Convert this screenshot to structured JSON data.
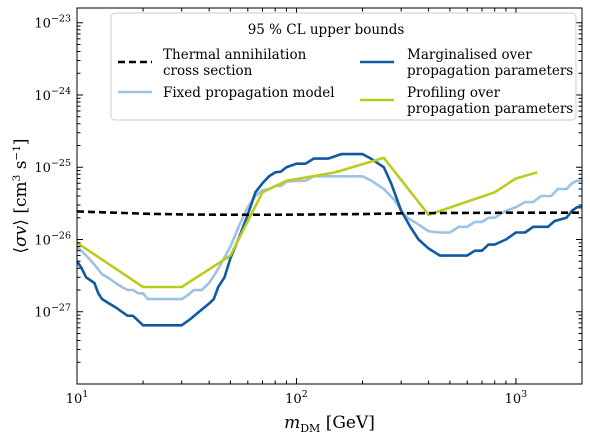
{
  "chart_data": {
    "type": "line",
    "xscale": "log",
    "yscale": "log",
    "xlim": [
      10,
      2000
    ],
    "ylim": [
      1e-28,
      1.6e-23
    ],
    "xlabel": "m_DM [GeV]",
    "ylabel": "⟨σv⟩ [cm³ s⁻¹]",
    "x_ticks": [
      {
        "value": 10,
        "base": "10",
        "exp": "1"
      },
      {
        "value": 100,
        "base": "10",
        "exp": "2"
      },
      {
        "value": 1000,
        "base": "10",
        "exp": "3"
      }
    ],
    "y_ticks": [
      {
        "value": 1e-27,
        "base": "10",
        "exp": "−27"
      },
      {
        "value": 1e-26,
        "base": "10",
        "exp": "−26"
      },
      {
        "value": 1e-25,
        "base": "10",
        "exp": "−25"
      },
      {
        "value": 1e-24,
        "base": "10",
        "exp": "−24"
      },
      {
        "value": 1e-23,
        "base": "10",
        "exp": "−23"
      }
    ],
    "legend": {
      "title": "95 % CL upper bounds",
      "placement": "top"
    },
    "series": [
      {
        "name": [
          "Thermal annihilation",
          "cross section"
        ],
        "color": "#000000",
        "style": "dashed",
        "points": [
          [
            10,
            2.45e-26
          ],
          [
            12,
            2.4e-26
          ],
          [
            15,
            2.35e-26
          ],
          [
            20,
            2.28e-26
          ],
          [
            30,
            2.22e-26
          ],
          [
            50,
            2.2e-26
          ],
          [
            80,
            2.2e-26
          ],
          [
            120,
            2.22e-26
          ],
          [
            200,
            2.25e-26
          ],
          [
            300,
            2.3e-26
          ],
          [
            500,
            2.33e-26
          ],
          [
            1000,
            2.35e-26
          ],
          [
            2000,
            2.35e-26
          ]
        ]
      },
      {
        "name": [
          "Fixed propagation model"
        ],
        "color": "#9ec1e6",
        "style": "solid",
        "points": [
          [
            10,
            8e-27
          ],
          [
            11,
            6e-27
          ],
          [
            12,
            4.5e-27
          ],
          [
            13,
            3.3e-27
          ],
          [
            14,
            2.9e-27
          ],
          [
            15,
            2.5e-27
          ],
          [
            16,
            2.2e-27
          ],
          [
            17,
            2e-27
          ],
          [
            18,
            2e-27
          ],
          [
            19,
            1.8e-27
          ],
          [
            20,
            1.8e-27
          ],
          [
            21,
            1.5e-27
          ],
          [
            25,
            1.5e-27
          ],
          [
            30,
            1.5e-27
          ],
          [
            32,
            1.7e-27
          ],
          [
            34,
            2e-27
          ],
          [
            37,
            2e-27
          ],
          [
            40,
            2.5e-27
          ],
          [
            43,
            3.5e-27
          ],
          [
            46,
            5e-27
          ],
          [
            50,
            8e-27
          ],
          [
            55,
            1.6e-26
          ],
          [
            60,
            2.8e-26
          ],
          [
            65,
            4e-26
          ],
          [
            70,
            4.8e-26
          ],
          [
            75,
            5e-26
          ],
          [
            80,
            5.5e-26
          ],
          [
            85,
            5.5e-26
          ],
          [
            90,
            6.3e-26
          ],
          [
            100,
            6.5e-26
          ],
          [
            110,
            6.5e-26
          ],
          [
            120,
            7.5e-26
          ],
          [
            150,
            7.5e-26
          ],
          [
            200,
            7.5e-26
          ],
          [
            220,
            6.5e-26
          ],
          [
            250,
            5e-26
          ],
          [
            280,
            3.5e-26
          ],
          [
            300,
            2.5e-26
          ],
          [
            320,
            2e-26
          ],
          [
            350,
            1.7e-26
          ],
          [
            400,
            1.3e-26
          ],
          [
            450,
            1.25e-26
          ],
          [
            500,
            1.25e-26
          ],
          [
            550,
            1.5e-26
          ],
          [
            600,
            1.5e-26
          ],
          [
            650,
            1.75e-26
          ],
          [
            700,
            1.75e-26
          ],
          [
            750,
            2e-26
          ],
          [
            800,
            2e-26
          ],
          [
            900,
            2.5e-26
          ],
          [
            1000,
            2.8e-26
          ],
          [
            1100,
            3.3e-26
          ],
          [
            1200,
            3.3e-26
          ],
          [
            1300,
            4e-26
          ],
          [
            1450,
            4e-26
          ],
          [
            1550,
            5e-26
          ],
          [
            1700,
            5e-26
          ],
          [
            1800,
            6e-26
          ],
          [
            1900,
            6.5e-26
          ],
          [
            2000,
            6.5e-26
          ]
        ]
      },
      {
        "name": [
          "Marginalised over",
          "propagation parameters"
        ],
        "color": "#0f5aa3",
        "style": "solid",
        "points": [
          [
            10,
            5e-27
          ],
          [
            10.5,
            4e-27
          ],
          [
            11,
            3e-27
          ],
          [
            12,
            2.5e-27
          ],
          [
            12.5,
            1.8e-27
          ],
          [
            13,
            1.5e-27
          ],
          [
            14,
            1.3e-27
          ],
          [
            15,
            1.15e-27
          ],
          [
            16,
            1e-27
          ],
          [
            17,
            8.8e-28
          ],
          [
            18,
            8.8e-28
          ],
          [
            20,
            6.5e-28
          ],
          [
            25,
            6.5e-28
          ],
          [
            30,
            6.5e-28
          ],
          [
            33,
            8e-28
          ],
          [
            36,
            1e-27
          ],
          [
            40,
            1.3e-27
          ],
          [
            42,
            1.5e-27
          ],
          [
            44,
            2.2e-27
          ],
          [
            47,
            3e-27
          ],
          [
            50,
            5.5e-27
          ],
          [
            55,
            1.1e-26
          ],
          [
            60,
            2.2e-26
          ],
          [
            65,
            4.5e-26
          ],
          [
            70,
            6e-26
          ],
          [
            75,
            7.5e-26
          ],
          [
            80,
            8.5e-26
          ],
          [
            85,
            8.7e-26
          ],
          [
            90,
            1e-25
          ],
          [
            100,
            1.12e-25
          ],
          [
            110,
            1.12e-25
          ],
          [
            120,
            1.32e-25
          ],
          [
            140,
            1.32e-25
          ],
          [
            160,
            1.52e-25
          ],
          [
            200,
            1.52e-25
          ],
          [
            220,
            1.3e-25
          ],
          [
            250,
            1e-25
          ],
          [
            270,
            6e-26
          ],
          [
            300,
            2.5e-26
          ],
          [
            330,
            1.5e-26
          ],
          [
            360,
            1e-26
          ],
          [
            400,
            7.5e-27
          ],
          [
            450,
            6e-27
          ],
          [
            500,
            6e-27
          ],
          [
            600,
            6e-27
          ],
          [
            650,
            7e-27
          ],
          [
            700,
            7e-27
          ],
          [
            750,
            8.5e-27
          ],
          [
            800,
            8.5e-27
          ],
          [
            900,
            1e-26
          ],
          [
            1000,
            1.25e-26
          ],
          [
            1100,
            1.25e-26
          ],
          [
            1200,
            1.5e-26
          ],
          [
            1400,
            1.5e-26
          ],
          [
            1500,
            1.8e-26
          ],
          [
            1700,
            2e-26
          ],
          [
            1800,
            2.5e-26
          ],
          [
            1900,
            2.8e-26
          ],
          [
            2000,
            2.8e-26
          ]
        ]
      },
      {
        "name": [
          "Profiling over",
          "propagation parameters"
        ],
        "color": "#bccb1f",
        "style": "solid",
        "points": [
          [
            10,
            9e-27
          ],
          [
            20,
            2.2e-27
          ],
          [
            30,
            2.2e-27
          ],
          [
            50,
            6e-27
          ],
          [
            70,
            4.5e-26
          ],
          [
            90,
            6.5e-26
          ],
          [
            150,
            8.5e-26
          ],
          [
            250,
            1.35e-25
          ],
          [
            400,
            2.2e-26
          ],
          [
            800,
            4.5e-26
          ],
          [
            1000,
            7e-26
          ],
          [
            1250,
            8.5e-26
          ]
        ]
      }
    ]
  }
}
